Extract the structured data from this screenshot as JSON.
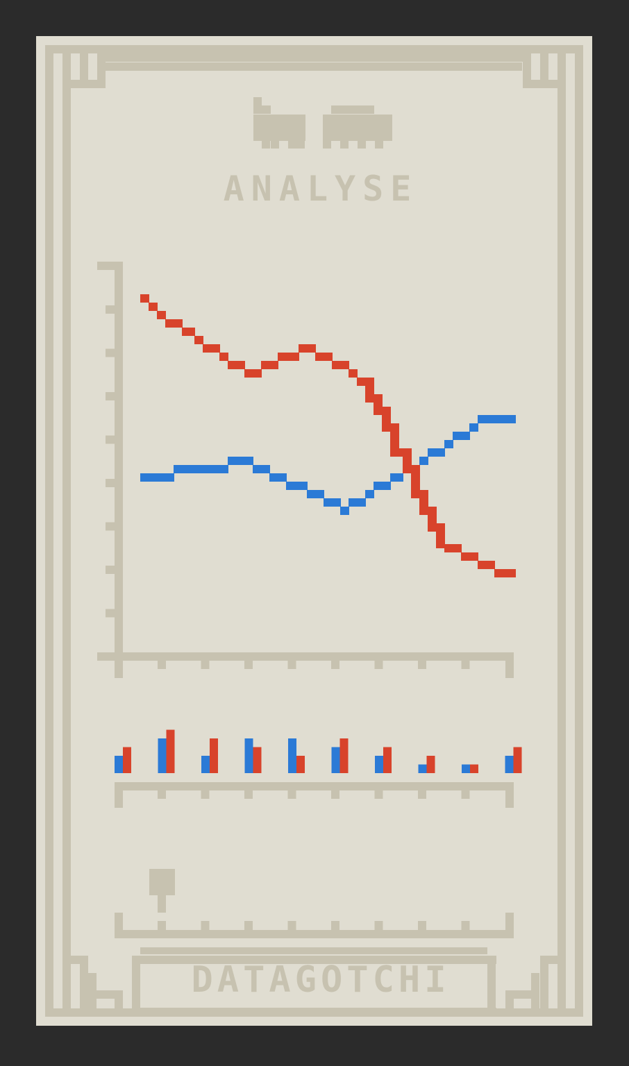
{
  "header": {
    "title": "ANALYSE",
    "mascots": [
      "llama-icon",
      "elephant-icon"
    ]
  },
  "footer": {
    "brand": "DATAGOTCHI"
  },
  "colors": {
    "background": "#2b2b2b",
    "card": "#e0ddd1",
    "frame": "#c7c2b0",
    "series_a": "#2b7ad6",
    "series_b": "#d8432b"
  },
  "chart_data": [
    {
      "type": "line",
      "title": "",
      "xlabel": "",
      "ylabel": "",
      "x": [
        0,
        1,
        2,
        3,
        4,
        5,
        6,
        7,
        8,
        9,
        10,
        11,
        12,
        13,
        14,
        15,
        16,
        17,
        18,
        19,
        20,
        21,
        22,
        23,
        24,
        25,
        26,
        27,
        28,
        29,
        30,
        31,
        32,
        33,
        34,
        35,
        36,
        37,
        38,
        39,
        40,
        41,
        42
      ],
      "xlim": [
        0,
        45
      ],
      "ylim": [
        0,
        45
      ],
      "series": [
        {
          "color": "#2b7ad6",
          "values": [
            20,
            20,
            20,
            20,
            21,
            21,
            21,
            21,
            21,
            21,
            22,
            22,
            22,
            21,
            21,
            20,
            20,
            19,
            19,
            18,
            18,
            17,
            17,
            16,
            17,
            17,
            18,
            19,
            19,
            20,
            21,
            21,
            22,
            23,
            23,
            24,
            25,
            25,
            26,
            27,
            27,
            27,
            27
          ]
        },
        {
          "color": "#d8432b",
          "values": [
            42,
            41,
            40,
            39,
            39,
            38,
            37,
            36,
            36,
            35,
            34,
            34,
            33,
            33,
            34,
            34,
            35,
            35,
            36,
            36,
            35,
            35,
            34,
            34,
            33,
            32,
            30,
            28,
            26,
            23,
            21,
            18,
            16,
            14,
            12,
            11,
            11,
            10,
            10,
            9,
            9,
            8,
            8
          ]
        }
      ]
    },
    {
      "type": "bar",
      "title": "",
      "categories": [
        "1",
        "2",
        "3",
        "4",
        "5",
        "6",
        "7",
        "8",
        "9",
        "10"
      ],
      "ylim": [
        0,
        5
      ],
      "series": [
        {
          "color": "#2b7ad6",
          "values": [
            2,
            4,
            2,
            4,
            4,
            3,
            2,
            1,
            1,
            2
          ]
        },
        {
          "color": "#d8432b",
          "values": [
            3,
            5,
            4,
            3,
            2,
            4,
            3,
            2,
            1,
            3
          ]
        }
      ]
    },
    {
      "type": "bar",
      "title": "",
      "categories": [
        "1"
      ],
      "note_marker": "goblet-icon",
      "values": [
        1
      ]
    }
  ]
}
